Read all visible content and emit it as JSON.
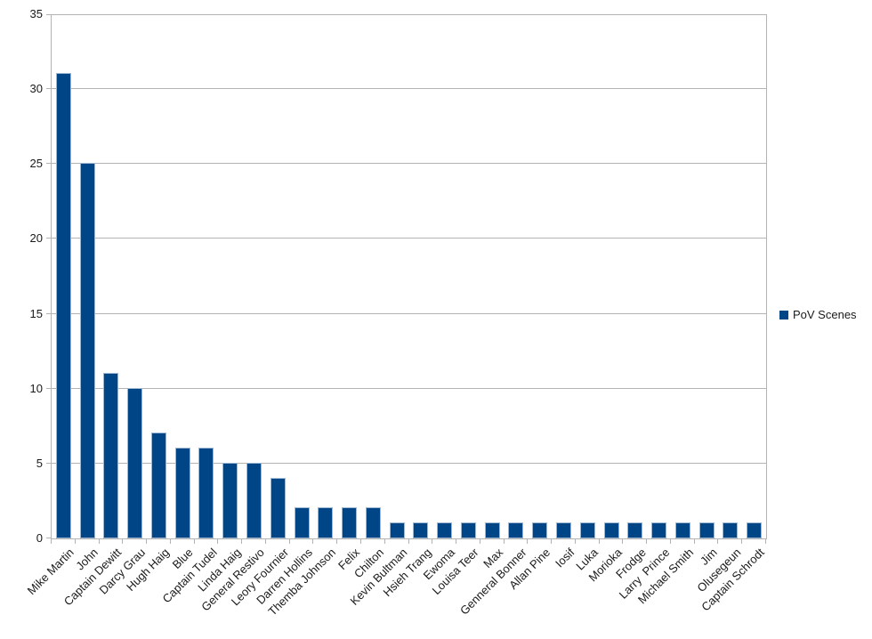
{
  "chart_data": {
    "type": "bar",
    "title": "",
    "xlabel": "",
    "ylabel": "",
    "categories": [
      "Mike Martin",
      "John",
      "Captain Dewitt",
      "Darcy Grau",
      "Hugh Haig",
      "Blue",
      "Captain Tudel",
      "Linda Haig",
      "General Restivo",
      "Leory Fournier",
      "Darren Hollins",
      "Themba Johnson",
      "Felix",
      "Chilton",
      "Kevin Bultman",
      "Hsieh Trang",
      "Ewoma",
      "Louisa Teer",
      "Max",
      "Genneral Bonner",
      "Allan Pine",
      "Iosif",
      "Luka",
      "Morioka",
      "Frodge",
      "Larry  Prince",
      "Michael Smith",
      "Jim",
      "Olusegeun",
      "Captain Schrodt"
    ],
    "series": [
      {
        "name": "PoV Scenes",
        "values": [
          31,
          25,
          11,
          10,
          7,
          6,
          6,
          5,
          5,
          4,
          2,
          2,
          2,
          2,
          1,
          1,
          1,
          1,
          1,
          1,
          1,
          1,
          1,
          1,
          1,
          1,
          1,
          1,
          1,
          1
        ]
      }
    ],
    "ylim": [
      0,
      35
    ],
    "yticks": [
      0,
      5,
      10,
      15,
      20,
      25,
      30,
      35
    ],
    "grid": true,
    "legend": {
      "position": "right",
      "entries": [
        {
          "label": "PoV Scenes",
          "color": "#004586"
        }
      ]
    },
    "colors": {
      "bar_fill": "#004586",
      "bar_border": "#9db7d3",
      "gridline": "#b3b3b3",
      "axis": "#b3b3b3",
      "text": "#1a1a1a",
      "background": "#ffffff"
    }
  }
}
